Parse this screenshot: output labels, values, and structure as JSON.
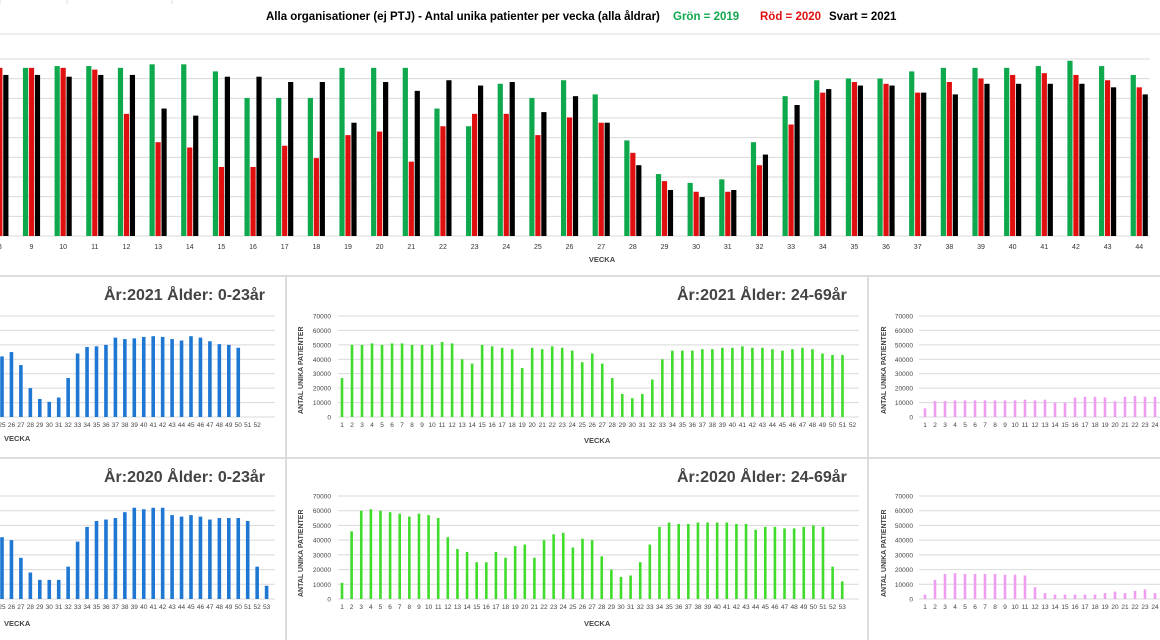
{
  "header": {
    "title": "Alla organisationer (ej PTJ)   -   Antal unika patienter per vecka (alla åldrar)",
    "legend_green": "Grön = 2019",
    "legend_red": "Röd = 2020",
    "legend_black": "Svart = 2021",
    "color_green": "#0ea84d",
    "color_red": "#e01010",
    "color_black": "#000000"
  },
  "colors": {
    "blue": "#1f77d4",
    "green": "#3fdc2c",
    "pink": "#ee9df0",
    "grid": "#d9d9d9",
    "cell_border": "#dcdcdc"
  },
  "chart_data": [
    {
      "id": "main",
      "type": "bar",
      "xlabel": "VECKA",
      "categories": [
        "9",
        "10",
        "11",
        "12",
        "13",
        "14",
        "15",
        "16",
        "17",
        "18",
        "19",
        "20",
        "21",
        "22",
        "23",
        "24",
        "25",
        "26",
        "27",
        "28",
        "29",
        "30",
        "31",
        "32",
        "33",
        "34",
        "35",
        "36",
        "37",
        "38",
        "39",
        "40",
        "41",
        "42",
        "43",
        "44"
      ],
      "grid_lines": 9,
      "ylim": [
        0,
        100
      ],
      "partial_left": {
        "label": "8",
        "values": [
          null,
          95,
          91
        ]
      },
      "series": [
        {
          "name": "Grön = 2019",
          "color": "#0ea84d",
          "values": [
            95,
            96,
            96,
            95,
            97,
            97,
            93,
            78,
            78,
            78,
            95,
            95,
            95,
            72,
            62,
            86,
            78,
            88,
            80,
            54,
            35,
            30,
            32,
            53,
            79,
            88,
            89,
            89,
            93,
            95,
            95,
            95,
            96,
            99,
            96,
            91
          ]
        },
        {
          "name": "Röd = 2020",
          "color": "#e01010",
          "values": [
            95,
            95,
            94,
            69,
            53,
            50,
            39,
            39,
            51,
            44,
            57,
            59,
            42,
            62,
            69,
            69,
            57,
            67,
            64,
            47,
            31,
            25,
            25,
            40,
            63,
            81,
            87,
            86,
            81,
            87,
            89,
            91,
            92,
            91,
            88,
            84
          ]
        },
        {
          "name": "Svart = 2021",
          "color": "#000000",
          "values": [
            91,
            90,
            91,
            91,
            72,
            68,
            90,
            90,
            87,
            87,
            64,
            87,
            82,
            88,
            85,
            87,
            70,
            79,
            64,
            40,
            26,
            22,
            26,
            46,
            74,
            83,
            85,
            85,
            81,
            80,
            86,
            86,
            86,
            86,
            84,
            80
          ]
        }
      ]
    },
    {
      "id": "p2021_0_23",
      "type": "bar",
      "title": "År:2021   Ålder: 0-23år",
      "xlabel": "VECKA",
      "color": "#1f77d4",
      "ylim": [
        0,
        70000
      ],
      "categories": [
        "25",
        "26",
        "27",
        "28",
        "29",
        "30",
        "31",
        "32",
        "33",
        "34",
        "35",
        "36",
        "37",
        "38",
        "39",
        "40",
        "41",
        "42",
        "43",
        "44",
        "45",
        "46",
        "47",
        "48",
        "49",
        "50",
        "51",
        "52"
      ],
      "values": [
        42000,
        45000,
        36000,
        20000,
        12500,
        10500,
        13500,
        27000,
        44000,
        48500,
        49000,
        50000,
        55000,
        54000,
        54500,
        55500,
        56000,
        55500,
        54000,
        53000,
        56000,
        55000,
        52500,
        50500,
        50000,
        48000,
        null,
        null
      ]
    },
    {
      "id": "p2021_24_69",
      "type": "bar",
      "title": "År:2021   Ålder: 24-69år",
      "xlabel": "VECKA",
      "ylabel": "ANTAL UNIKA PATIENTER",
      "color": "#3fdc2c",
      "ylim": [
        0,
        70000
      ],
      "yticks": [
        "0",
        "10000",
        "20000",
        "30000",
        "40000",
        "50000",
        "60000",
        "70000"
      ],
      "categories": [
        "1",
        "2",
        "3",
        "4",
        "5",
        "6",
        "7",
        "8",
        "9",
        "10",
        "11",
        "12",
        "13",
        "14",
        "15",
        "16",
        "17",
        "18",
        "19",
        "20",
        "21",
        "22",
        "23",
        "24",
        "25",
        "26",
        "27",
        "28",
        "29",
        "30",
        "31",
        "32",
        "33",
        "34",
        "35",
        "36",
        "37",
        "38",
        "39",
        "40",
        "41",
        "42",
        "43",
        "44",
        "45",
        "46",
        "47",
        "48",
        "49",
        "50",
        "51",
        "52"
      ],
      "values": [
        27000,
        50000,
        50000,
        51000,
        50000,
        51000,
        51000,
        50000,
        50000,
        50000,
        52000,
        51000,
        40000,
        37000,
        50000,
        49000,
        48000,
        47000,
        34000,
        48000,
        47000,
        49000,
        48000,
        46000,
        38000,
        44000,
        37000,
        27000,
        16000,
        13000,
        16000,
        26000,
        40000,
        46000,
        46000,
        46000,
        47000,
        47000,
        48000,
        48000,
        49000,
        48000,
        48000,
        47000,
        46000,
        47000,
        48000,
        47000,
        44000,
        43000,
        43000,
        null
      ]
    },
    {
      "id": "p2021_70plus",
      "type": "bar",
      "ylabel": "ANTAL UNIKA PATIENTER",
      "color": "#ee9df0",
      "ylim": [
        0,
        70000
      ],
      "yticks": [
        "0",
        "10000",
        "20000",
        "30000",
        "40000",
        "50000",
        "60000",
        "70000"
      ],
      "categories": [
        "1",
        "2",
        "3",
        "4",
        "5",
        "6",
        "7",
        "8",
        "9",
        "10",
        "11",
        "12",
        "13",
        "14",
        "15",
        "16",
        "17",
        "18",
        "19",
        "20",
        "21",
        "22",
        "23",
        "24"
      ],
      "values": [
        6000,
        11000,
        11000,
        11500,
        11500,
        11500,
        11500,
        11500,
        11500,
        11500,
        12000,
        11500,
        12000,
        10000,
        10000,
        13500,
        14000,
        14000,
        13500,
        11000,
        14000,
        14500,
        14000,
        14000
      ]
    },
    {
      "id": "p2020_0_23",
      "type": "bar",
      "title": "År:2020   Ålder: 0-23år",
      "xlabel": "VECKA",
      "color": "#1f77d4",
      "ylim": [
        0,
        70000
      ],
      "categories": [
        "25",
        "26",
        "27",
        "28",
        "29",
        "30",
        "31",
        "32",
        "33",
        "34",
        "35",
        "36",
        "37",
        "38",
        "39",
        "40",
        "41",
        "42",
        "43",
        "44",
        "45",
        "46",
        "47",
        "48",
        "49",
        "50",
        "51",
        "52",
        "53"
      ],
      "values": [
        42000,
        40000,
        28000,
        18000,
        13000,
        13000,
        13000,
        22000,
        39000,
        49000,
        53000,
        54000,
        55000,
        59000,
        62000,
        61000,
        62000,
        62000,
        57000,
        56000,
        57000,
        56000,
        54000,
        55000,
        55000,
        55000,
        53000,
        22000,
        9000
      ]
    },
    {
      "id": "p2020_24_69",
      "type": "bar",
      "title": "År:2020   Ålder: 24-69år",
      "xlabel": "VECKA",
      "ylabel": "ANTAL UNIKA PATIENTER",
      "color": "#3fdc2c",
      "ylim": [
        0,
        70000
      ],
      "yticks": [
        "0",
        "10000",
        "20000",
        "30000",
        "40000",
        "50000",
        "60000",
        "70000"
      ],
      "categories": [
        "1",
        "2",
        "3",
        "4",
        "5",
        "6",
        "7",
        "8",
        "9",
        "10",
        "11",
        "12",
        "13",
        "14",
        "15",
        "16",
        "17",
        "18",
        "19",
        "20",
        "21",
        "22",
        "23",
        "24",
        "25",
        "26",
        "27",
        "28",
        "29",
        "30",
        "31",
        "32",
        "33",
        "34",
        "35",
        "36",
        "37",
        "38",
        "39",
        "40",
        "41",
        "42",
        "43",
        "44",
        "45",
        "46",
        "47",
        "48",
        "49",
        "50",
        "51",
        "52",
        "53"
      ],
      "values": [
        11000,
        46000,
        60000,
        61000,
        60000,
        59000,
        58000,
        56000,
        58000,
        57000,
        55000,
        42000,
        34000,
        32000,
        25000,
        25000,
        32000,
        28000,
        36000,
        37000,
        28000,
        40000,
        44000,
        45000,
        35000,
        41000,
        40000,
        29000,
        20000,
        15000,
        16000,
        25000,
        37000,
        49000,
        52000,
        51000,
        51000,
        52000,
        52000,
        52000,
        52000,
        51000,
        51000,
        47000,
        49000,
        49000,
        48000,
        48000,
        49000,
        50000,
        49000,
        22000,
        12000
      ]
    },
    {
      "id": "p2020_70plus",
      "type": "bar",
      "ylabel": "ANTAL UNIKA PATIENTER",
      "color": "#ee9df0",
      "ylim": [
        0,
        70000
      ],
      "yticks": [
        "0",
        "10000",
        "20000",
        "30000",
        "40000",
        "50000",
        "60000",
        "70000"
      ],
      "categories": [
        "1",
        "2",
        "3",
        "4",
        "5",
        "6",
        "7",
        "8",
        "9",
        "10",
        "11",
        "12",
        "13",
        "14",
        "15",
        "16",
        "17",
        "18",
        "19",
        "20",
        "21",
        "22",
        "23",
        "24"
      ],
      "values": [
        3000,
        13000,
        17000,
        17500,
        17000,
        17000,
        17000,
        17000,
        16500,
        16500,
        16000,
        8000,
        4000,
        3000,
        3000,
        3000,
        3000,
        3000,
        4000,
        5000,
        4000,
        5500,
        6500,
        4000
      ]
    }
  ]
}
